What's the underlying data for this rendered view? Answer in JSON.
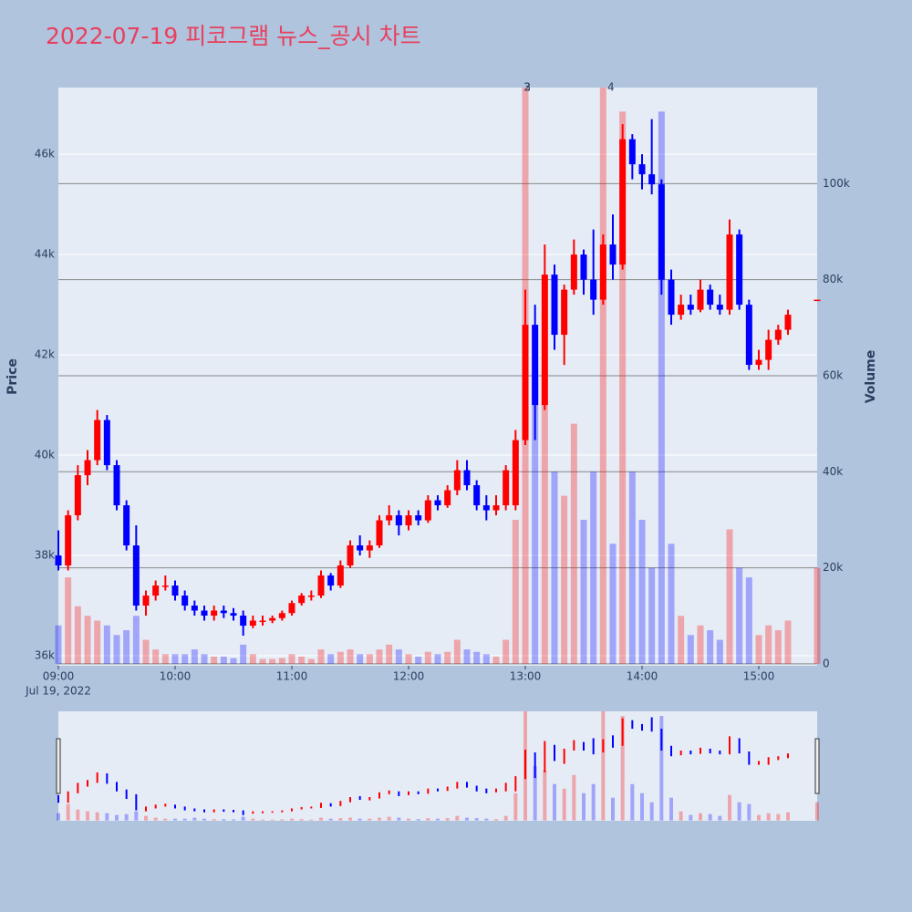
{
  "chart_data": {
    "type": "candlestick",
    "title": "2022-07-19 피코그램 뉴스_공시 차트",
    "y_label": "Price",
    "y2_label": "Volume",
    "x_date_label": "Jul 19, 2022",
    "increasing_color": "#ff0000",
    "decreasing_color": "#0000ff",
    "x": [
      "09:00",
      "09:05",
      "09:10",
      "09:15",
      "09:20",
      "09:25",
      "09:30",
      "09:35",
      "09:40",
      "09:45",
      "09:50",
      "09:55",
      "10:00",
      "10:05",
      "10:10",
      "10:15",
      "10:20",
      "10:25",
      "10:30",
      "10:35",
      "10:40",
      "10:45",
      "10:50",
      "10:55",
      "11:00",
      "11:05",
      "11:10",
      "11:15",
      "11:20",
      "11:25",
      "11:30",
      "11:35",
      "11:40",
      "11:45",
      "11:50",
      "11:55",
      "12:00",
      "12:05",
      "12:10",
      "12:15",
      "12:20",
      "12:25",
      "12:30",
      "12:35",
      "12:40",
      "12:45",
      "12:50",
      "12:55",
      "13:00",
      "13:05",
      "13:10",
      "13:15",
      "13:20",
      "13:25",
      "13:30",
      "13:35",
      "13:40",
      "13:45",
      "13:50",
      "13:55",
      "14:00",
      "14:05",
      "14:10",
      "14:15",
      "14:20",
      "14:25",
      "14:30",
      "14:35",
      "14:40",
      "14:45",
      "14:50",
      "14:55",
      "15:00",
      "15:05",
      "15:10",
      "15:15",
      "15:30"
    ],
    "open": [
      38000,
      37800,
      38800,
      39600,
      39900,
      40700,
      39800,
      39000,
      38200,
      37000,
      37200,
      37400,
      37400,
      37200,
      37000,
      36900,
      36800,
      36900,
      36850,
      36800,
      36600,
      36700,
      36700,
      36750,
      36850,
      37050,
      37200,
      37200,
      37600,
      37400,
      37800,
      38200,
      38100,
      38200,
      38700,
      38800,
      38600,
      38800,
      38700,
      39100,
      39000,
      39300,
      39700,
      39400,
      39000,
      38900,
      39000,
      39000,
      40300,
      42600,
      41000,
      43600,
      42400,
      43300,
      44000,
      43500,
      43100,
      44200,
      43800,
      46300,
      45800,
      45600,
      45400,
      43500,
      42800,
      43000,
      42900,
      43300,
      43000,
      42900,
      44400,
      43000,
      41800,
      41900,
      42300,
      42500,
      43100
    ],
    "high": [
      38500,
      38900,
      39800,
      40100,
      40900,
      40800,
      39900,
      39100,
      38600,
      37300,
      37500,
      37600,
      37500,
      37300,
      37100,
      37000,
      37000,
      37000,
      36950,
      36900,
      36800,
      36800,
      36800,
      36900,
      37100,
      37250,
      37300,
      37700,
      37650,
      37900,
      38300,
      38400,
      38300,
      38800,
      39000,
      38900,
      38900,
      38900,
      39200,
      39200,
      39400,
      39900,
      39900,
      39500,
      39200,
      39200,
      39800,
      40500,
      43300,
      43000,
      44200,
      43800,
      43400,
      44300,
      44100,
      44500,
      44400,
      44800,
      46600,
      46400,
      46000,
      46700,
      45500,
      43700,
      43200,
      43200,
      43500,
      43400,
      43200,
      44700,
      44500,
      43100,
      42100,
      42500,
      42600,
      42900,
      43100
    ],
    "low": [
      37700,
      37700,
      38700,
      39400,
      39800,
      39700,
      38900,
      38100,
      36900,
      36800,
      37100,
      37300,
      37100,
      36900,
      36800,
      36700,
      36700,
      36750,
      36700,
      36400,
      36550,
      36600,
      36650,
      36700,
      36800,
      37000,
      37100,
      37150,
      37300,
      37350,
      37750,
      38000,
      37950,
      38150,
      38600,
      38400,
      38500,
      38600,
      38650,
      38900,
      38950,
      39200,
      39300,
      38900,
      38700,
      38800,
      38900,
      38900,
      40200,
      40300,
      40900,
      42100,
      41800,
      43200,
      43200,
      42800,
      43000,
      43500,
      43700,
      45500,
      45300,
      45200,
      43200,
      42600,
      42700,
      42800,
      42850,
      42900,
      42800,
      42800,
      42900,
      41700,
      41700,
      41700,
      42200,
      42400,
      43100
    ],
    "close": [
      37800,
      38800,
      39600,
      39900,
      40700,
      39800,
      39000,
      38200,
      37000,
      37200,
      37400,
      37400,
      37200,
      37000,
      36900,
      36800,
      36900,
      36850,
      36800,
      36600,
      36700,
      36700,
      36750,
      36850,
      37050,
      37200,
      37200,
      37600,
      37400,
      37800,
      38200,
      38100,
      38200,
      38700,
      38800,
      38600,
      38800,
      38700,
      39100,
      39000,
      39300,
      39700,
      39400,
      39000,
      38900,
      39000,
      39700,
      40300,
      42600,
      41000,
      43600,
      42400,
      43300,
      44000,
      43500,
      43100,
      44200,
      43800,
      46300,
      45800,
      45600,
      45400,
      43500,
      42800,
      43000,
      42900,
      43300,
      43000,
      42900,
      44400,
      43000,
      41800,
      41900,
      42300,
      42500,
      42800,
      43100
    ],
    "volume": [
      8000,
      18000,
      12000,
      10000,
      9000,
      8000,
      6000,
      7000,
      10000,
      5000,
      3000,
      2000,
      2000,
      2000,
      3000,
      2000,
      1500,
      1500,
      1200,
      4000,
      2000,
      1000,
      1000,
      1200,
      2000,
      1500,
      1000,
      3000,
      2000,
      2500,
      3000,
      2000,
      2000,
      3000,
      4000,
      3000,
      2000,
      1500,
      2500,
      2000,
      2500,
      5000,
      3000,
      2500,
      2000,
      1500,
      5000,
      30000,
      120000,
      60000,
      55000,
      40000,
      35000,
      50000,
      30000,
      40000,
      120000,
      25000,
      115000,
      40000,
      30000,
      20000,
      115000,
      25000,
      10000,
      6000,
      8000,
      7000,
      5000,
      28000,
      20000,
      18000,
      6000,
      8000,
      7000,
      9000,
      20000
    ],
    "annotations": [
      {
        "x": "13:01",
        "text": "2"
      },
      {
        "x": "13:01",
        "text": "3"
      },
      {
        "x": "13:44",
        "text": "4"
      }
    ],
    "xlim": [
      "09:00",
      "15:30"
    ],
    "xticks": [
      "09:00",
      "10:00",
      "11:00",
      "12:00",
      "13:00",
      "14:00",
      "15:00"
    ],
    "ylim": [
      35800,
      47330
    ],
    "yticks": [
      {
        "value": 36000,
        "label": "36k"
      },
      {
        "value": 38000,
        "label": "38k"
      },
      {
        "value": 40000,
        "label": "40k"
      },
      {
        "value": 42000,
        "label": "42k"
      },
      {
        "value": 44000,
        "label": "44k"
      },
      {
        "value": 46000,
        "label": "46k"
      }
    ],
    "y2lim": [
      -400,
      120000
    ],
    "y2ticks": [
      0,
      {
        "value": 20000,
        "label": "20k"
      },
      {
        "value": 40000,
        "label": "40k"
      },
      {
        "value": 60000,
        "label": "60k"
      },
      {
        "value": 80000,
        "label": "80k"
      },
      {
        "value": 100000,
        "label": "100k"
      }
    ],
    "grid": true,
    "rangeslider": true
  }
}
